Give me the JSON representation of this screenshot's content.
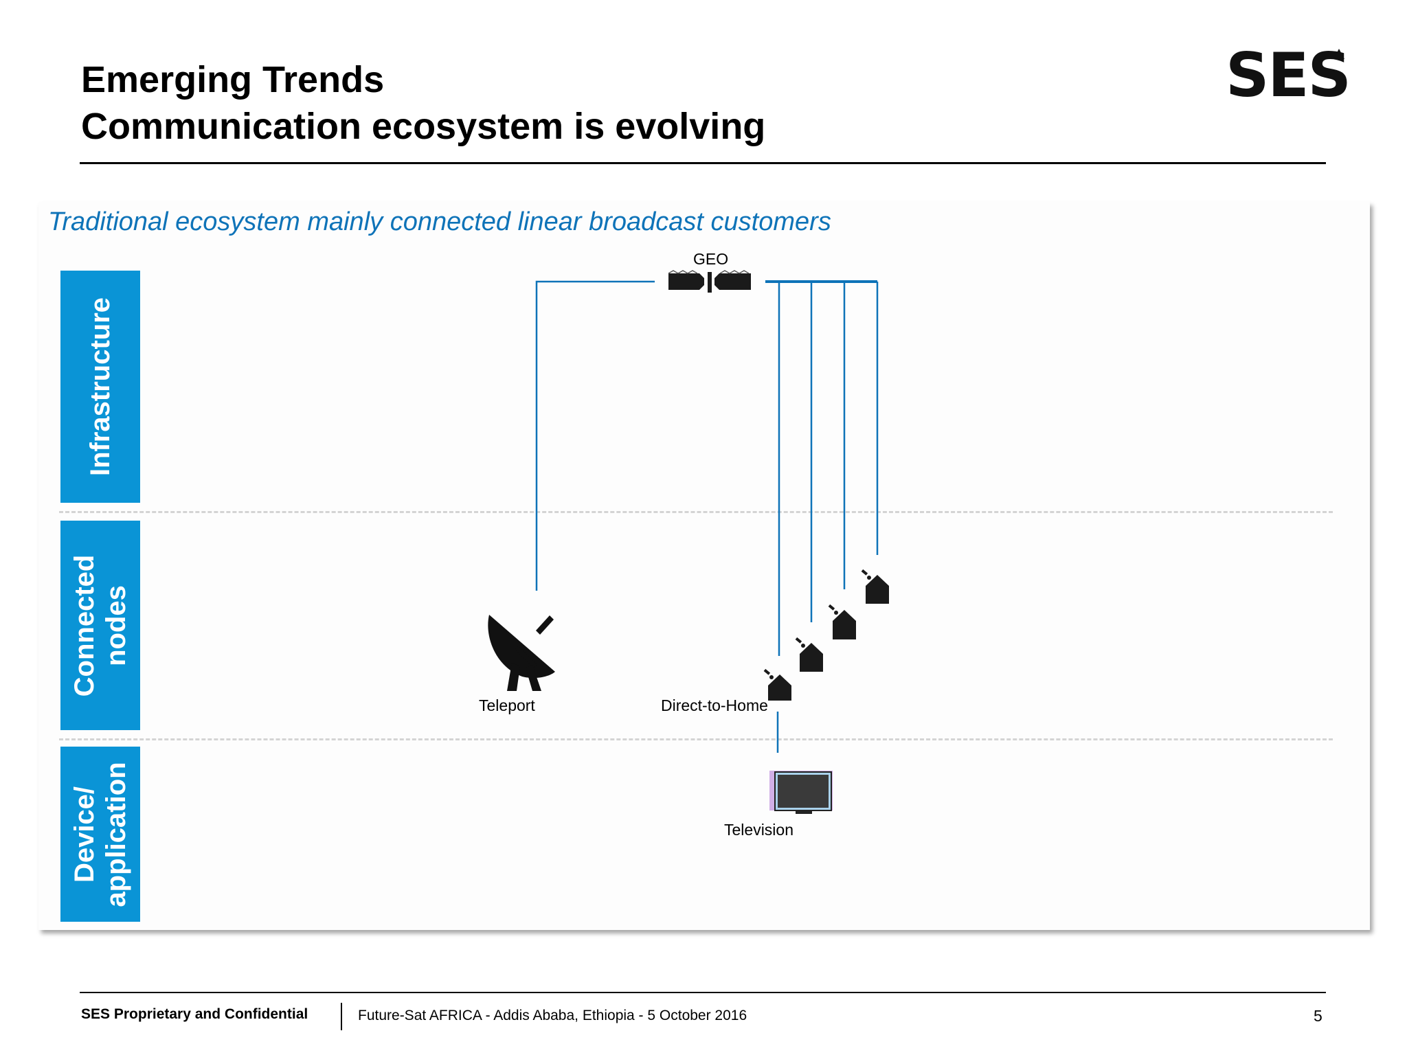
{
  "title": {
    "line1": "Emerging Trends",
    "line2": "Communication ecosystem is evolving"
  },
  "logo": {
    "text": "SES",
    "mark": "triangle-icon"
  },
  "subtitle": "Traditional ecosystem mainly connected linear broadcast customers",
  "bands": {
    "infrastructure": "Infrastructure",
    "connected_line1": "Connected",
    "connected_line2": "nodes",
    "device_line1": "Device/",
    "device_line2": "application"
  },
  "nodes": {
    "geo": "GEO",
    "teleport": "Teleport",
    "dth": "Direct-to-Home",
    "tv": "Television"
  },
  "icons": {
    "satellite": "satellite-icon",
    "dish": "satellite-dish-icon",
    "house": "house-with-dish-icon",
    "tv": "television-icon"
  },
  "colors": {
    "band": "#0a94d6",
    "link": "#0e73b8",
    "subtitle": "#0e73b8"
  },
  "footer": {
    "confidential": "SES Proprietary and Confidential",
    "event": "Future-Sat AFRICA - Addis Ababa, Ethiopia - 5 October 2016",
    "page": "5"
  }
}
